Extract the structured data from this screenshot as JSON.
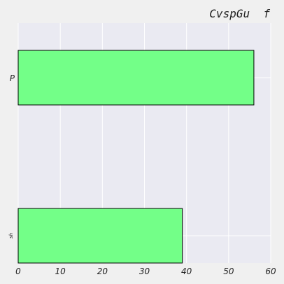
{
  "chart_data": {
    "type": "bar",
    "orientation": "horizontal",
    "title": "CvspGu  f",
    "categories": [
      "P",
      "sh"
    ],
    "values": [
      56,
      39
    ],
    "xlim": [
      0,
      60
    ],
    "xticks": [
      "0",
      "10",
      "20",
      "30",
      "40",
      "50",
      "60"
    ],
    "xlabel": "",
    "ylabel": "",
    "grid": true,
    "legend": "none",
    "colors": {
      "bar_fill": "#73ff88",
      "bar_edge": "#000000",
      "plot_background": "#eaeaf2",
      "grid": "#ffffff",
      "figure_background": "#f0f0f0"
    }
  }
}
